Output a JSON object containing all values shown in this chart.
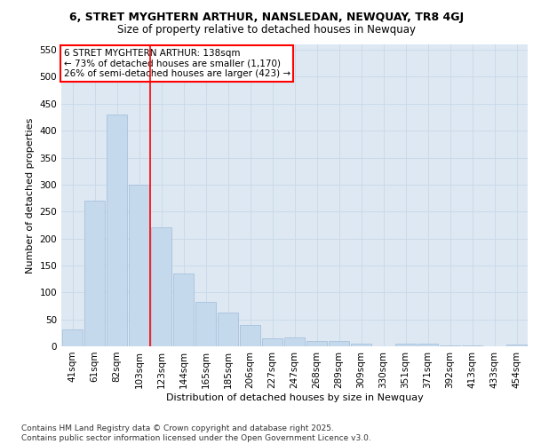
{
  "title_line1": "6, STRET MYGHTERN ARTHUR, NANSLEDAN, NEWQUAY, TR8 4GJ",
  "title_line2": "Size of property relative to detached houses in Newquay",
  "xlabel": "Distribution of detached houses by size in Newquay",
  "ylabel": "Number of detached properties",
  "bar_color": "#c5d9ed",
  "bar_edgecolor": "#a0bcd8",
  "grid_color": "#c8d8e8",
  "background_color": "#dde8f3",
  "annotation_text": "6 STRET MYGHTERN ARTHUR: 138sqm\n← 73% of detached houses are smaller (1,170)\n26% of semi-detached houses are larger (423) →",
  "vline_x_bar_index": 4,
  "categories": [
    "41sqm",
    "61sqm",
    "82sqm",
    "103sqm",
    "123sqm",
    "144sqm",
    "165sqm",
    "185sqm",
    "206sqm",
    "227sqm",
    "247sqm",
    "268sqm",
    "289sqm",
    "309sqm",
    "330sqm",
    "351sqm",
    "371sqm",
    "392sqm",
    "413sqm",
    "433sqm",
    "454sqm"
  ],
  "values": [
    32,
    270,
    430,
    300,
    220,
    135,
    82,
    62,
    40,
    15,
    17,
    10,
    10,
    5,
    0,
    5,
    5,
    2,
    2,
    0,
    4
  ],
  "ylim": [
    0,
    560
  ],
  "yticks": [
    0,
    50,
    100,
    150,
    200,
    250,
    300,
    350,
    400,
    450,
    500,
    550
  ],
  "footer_text": "Contains HM Land Registry data © Crown copyright and database right 2025.\nContains public sector information licensed under the Open Government Licence v3.0.",
  "title_fontsize": 9,
  "subtitle_fontsize": 8.5,
  "axis_label_fontsize": 8,
  "tick_fontsize": 7.5,
  "annotation_fontsize": 7.5,
  "footer_fontsize": 6.5
}
